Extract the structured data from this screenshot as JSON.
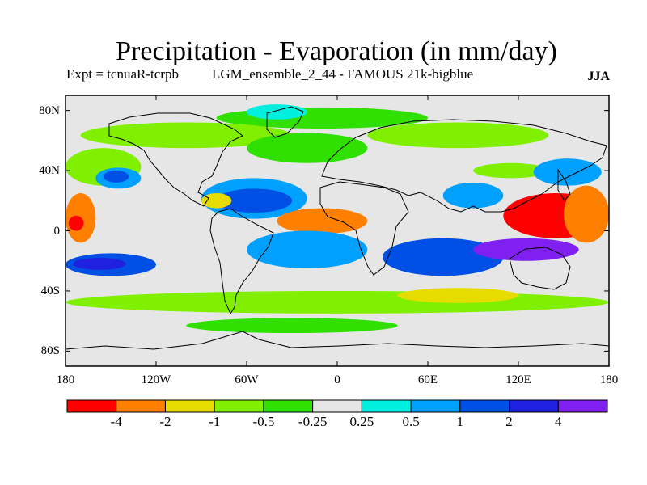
{
  "chart_data": {
    "type": "heatmap",
    "title": "Precipitation - Evaporation (in mm/day)",
    "experiment_label": "Expt = tcnuaR-tcrpb",
    "run_label": "LGM_ensemble_2_44 - FAMOUS 21k-bigblue",
    "season": "JJA",
    "x_axis": {
      "range": [
        -180,
        180
      ],
      "ticks": [
        {
          "value": -180,
          "label": "180"
        },
        {
          "value": -120,
          "label": "120W"
        },
        {
          "value": -60,
          "label": "60W"
        },
        {
          "value": 0,
          "label": "0"
        },
        {
          "value": 60,
          "label": "60E"
        },
        {
          "value": 120,
          "label": "120E"
        },
        {
          "value": 180,
          "label": "180"
        }
      ]
    },
    "y_axis": {
      "range": [
        -90,
        90
      ],
      "ticks": [
        {
          "value": 80,
          "label": "80N"
        },
        {
          "value": 40,
          "label": "40N"
        },
        {
          "value": 0,
          "label": "0"
        },
        {
          "value": -40,
          "label": "40S"
        },
        {
          "value": -80,
          "label": "80S"
        }
      ]
    },
    "colorbar": {
      "colors": [
        "#ff0000",
        "#ff8000",
        "#e6dc00",
        "#80f000",
        "#30e000",
        "#e6e6e6",
        "#00f0e0",
        "#00a0ff",
        "#0050e6",
        "#2020e0",
        "#8020f0"
      ],
      "labels": [
        "-4",
        "-2",
        "-1",
        "-0.5",
        "-0.25",
        "0.25",
        "0.5",
        "1",
        "2",
        "4"
      ]
    },
    "background_level": 5,
    "regions": [
      {
        "name": "arctic-wet",
        "level": 4,
        "lon": [
          -80,
          60
        ],
        "lat": [
          68,
          82
        ]
      },
      {
        "name": "arctic-cyan",
        "level": 6,
        "lon": [
          -60,
          -20
        ],
        "lat": [
          74,
          84
        ]
      },
      {
        "name": "na-arctic-green",
        "level": 3,
        "lon": [
          -170,
          -30
        ],
        "lat": [
          55,
          72
        ]
      },
      {
        "name": "north-atlantic-wet",
        "level": 4,
        "lon": [
          -60,
          20
        ],
        "lat": [
          45,
          65
        ]
      },
      {
        "name": "eurasia-dry",
        "level": 3,
        "lon": [
          20,
          140
        ],
        "lat": [
          55,
          72
        ]
      },
      {
        "name": "north-pacific-dry",
        "level": 3,
        "lon": [
          -180,
          -130
        ],
        "lat": [
          30,
          55
        ]
      },
      {
        "name": "north-pacific-storm",
        "level": 7,
        "lon": [
          -160,
          -130
        ],
        "lat": [
          28,
          42
        ]
      },
      {
        "name": "north-pacific-storm-core",
        "level": 8,
        "lon": [
          -155,
          -138
        ],
        "lat": [
          32,
          40
        ]
      },
      {
        "name": "atlantic-itcz",
        "level": 7,
        "lon": [
          -90,
          -20
        ],
        "lat": [
          8,
          35
        ]
      },
      {
        "name": "atlantic-itcz-core",
        "level": 8,
        "lon": [
          -80,
          -30
        ],
        "lat": [
          12,
          28
        ]
      },
      {
        "name": "sahel-dry",
        "level": 1,
        "lon": [
          -40,
          20
        ],
        "lat": [
          -2,
          15
        ]
      },
      {
        "name": "caribbean-dry",
        "level": 2,
        "lon": [
          -90,
          -70
        ],
        "lat": [
          15,
          25
        ]
      },
      {
        "name": "indian-monsoon",
        "level": 7,
        "lon": [
          70,
          110
        ],
        "lat": [
          15,
          32
        ]
      },
      {
        "name": "asia-dry-band",
        "level": 3,
        "lon": [
          90,
          140
        ],
        "lat": [
          35,
          45
        ]
      },
      {
        "name": "kuroshio-wet",
        "level": 7,
        "lon": [
          130,
          175
        ],
        "lat": [
          30,
          48
        ]
      },
      {
        "name": "east-pacific-dry",
        "level": 1,
        "lon": [
          -180,
          -160
        ],
        "lat": [
          -8,
          25
        ]
      },
      {
        "name": "east-pacific-core",
        "level": 0,
        "lon": [
          -178,
          -168
        ],
        "lat": [
          0,
          10
        ]
      },
      {
        "name": "west-pacific-dry",
        "level": 0,
        "lon": [
          110,
          180
        ],
        "lat": [
          -5,
          25
        ]
      },
      {
        "name": "west-pacific-orange",
        "level": 1,
        "lon": [
          150,
          180
        ],
        "lat": [
          -8,
          30
        ]
      },
      {
        "name": "south-pacific-band",
        "level": 8,
        "lon": [
          -180,
          -120
        ],
        "lat": [
          -30,
          -15
        ]
      },
      {
        "name": "south-pacific-core",
        "level": 9,
        "lon": [
          -175,
          -140
        ],
        "lat": [
          -26,
          -18
        ]
      },
      {
        "name": "south-atlantic-wet",
        "level": 7,
        "lon": [
          -60,
          20
        ],
        "lat": [
          -25,
          0
        ]
      },
      {
        "name": "indian-ocean-wet",
        "level": 8,
        "lon": [
          30,
          110
        ],
        "lat": [
          -30,
          -5
        ]
      },
      {
        "name": "maritime-continent",
        "level": 10,
        "lon": [
          90,
          160
        ],
        "lat": [
          -20,
          -5
        ]
      },
      {
        "name": "southern-ocean-band",
        "level": 3,
        "lon": [
          -180,
          180
        ],
        "lat": [
          -55,
          -40
        ]
      },
      {
        "name": "southern-ocean-wet",
        "level": 4,
        "lon": [
          -100,
          40
        ],
        "lat": [
          -68,
          -58
        ]
      },
      {
        "name": "south-indian-dry",
        "level": 2,
        "lon": [
          40,
          120
        ],
        "lat": [
          -48,
          -38
        ]
      }
    ]
  }
}
